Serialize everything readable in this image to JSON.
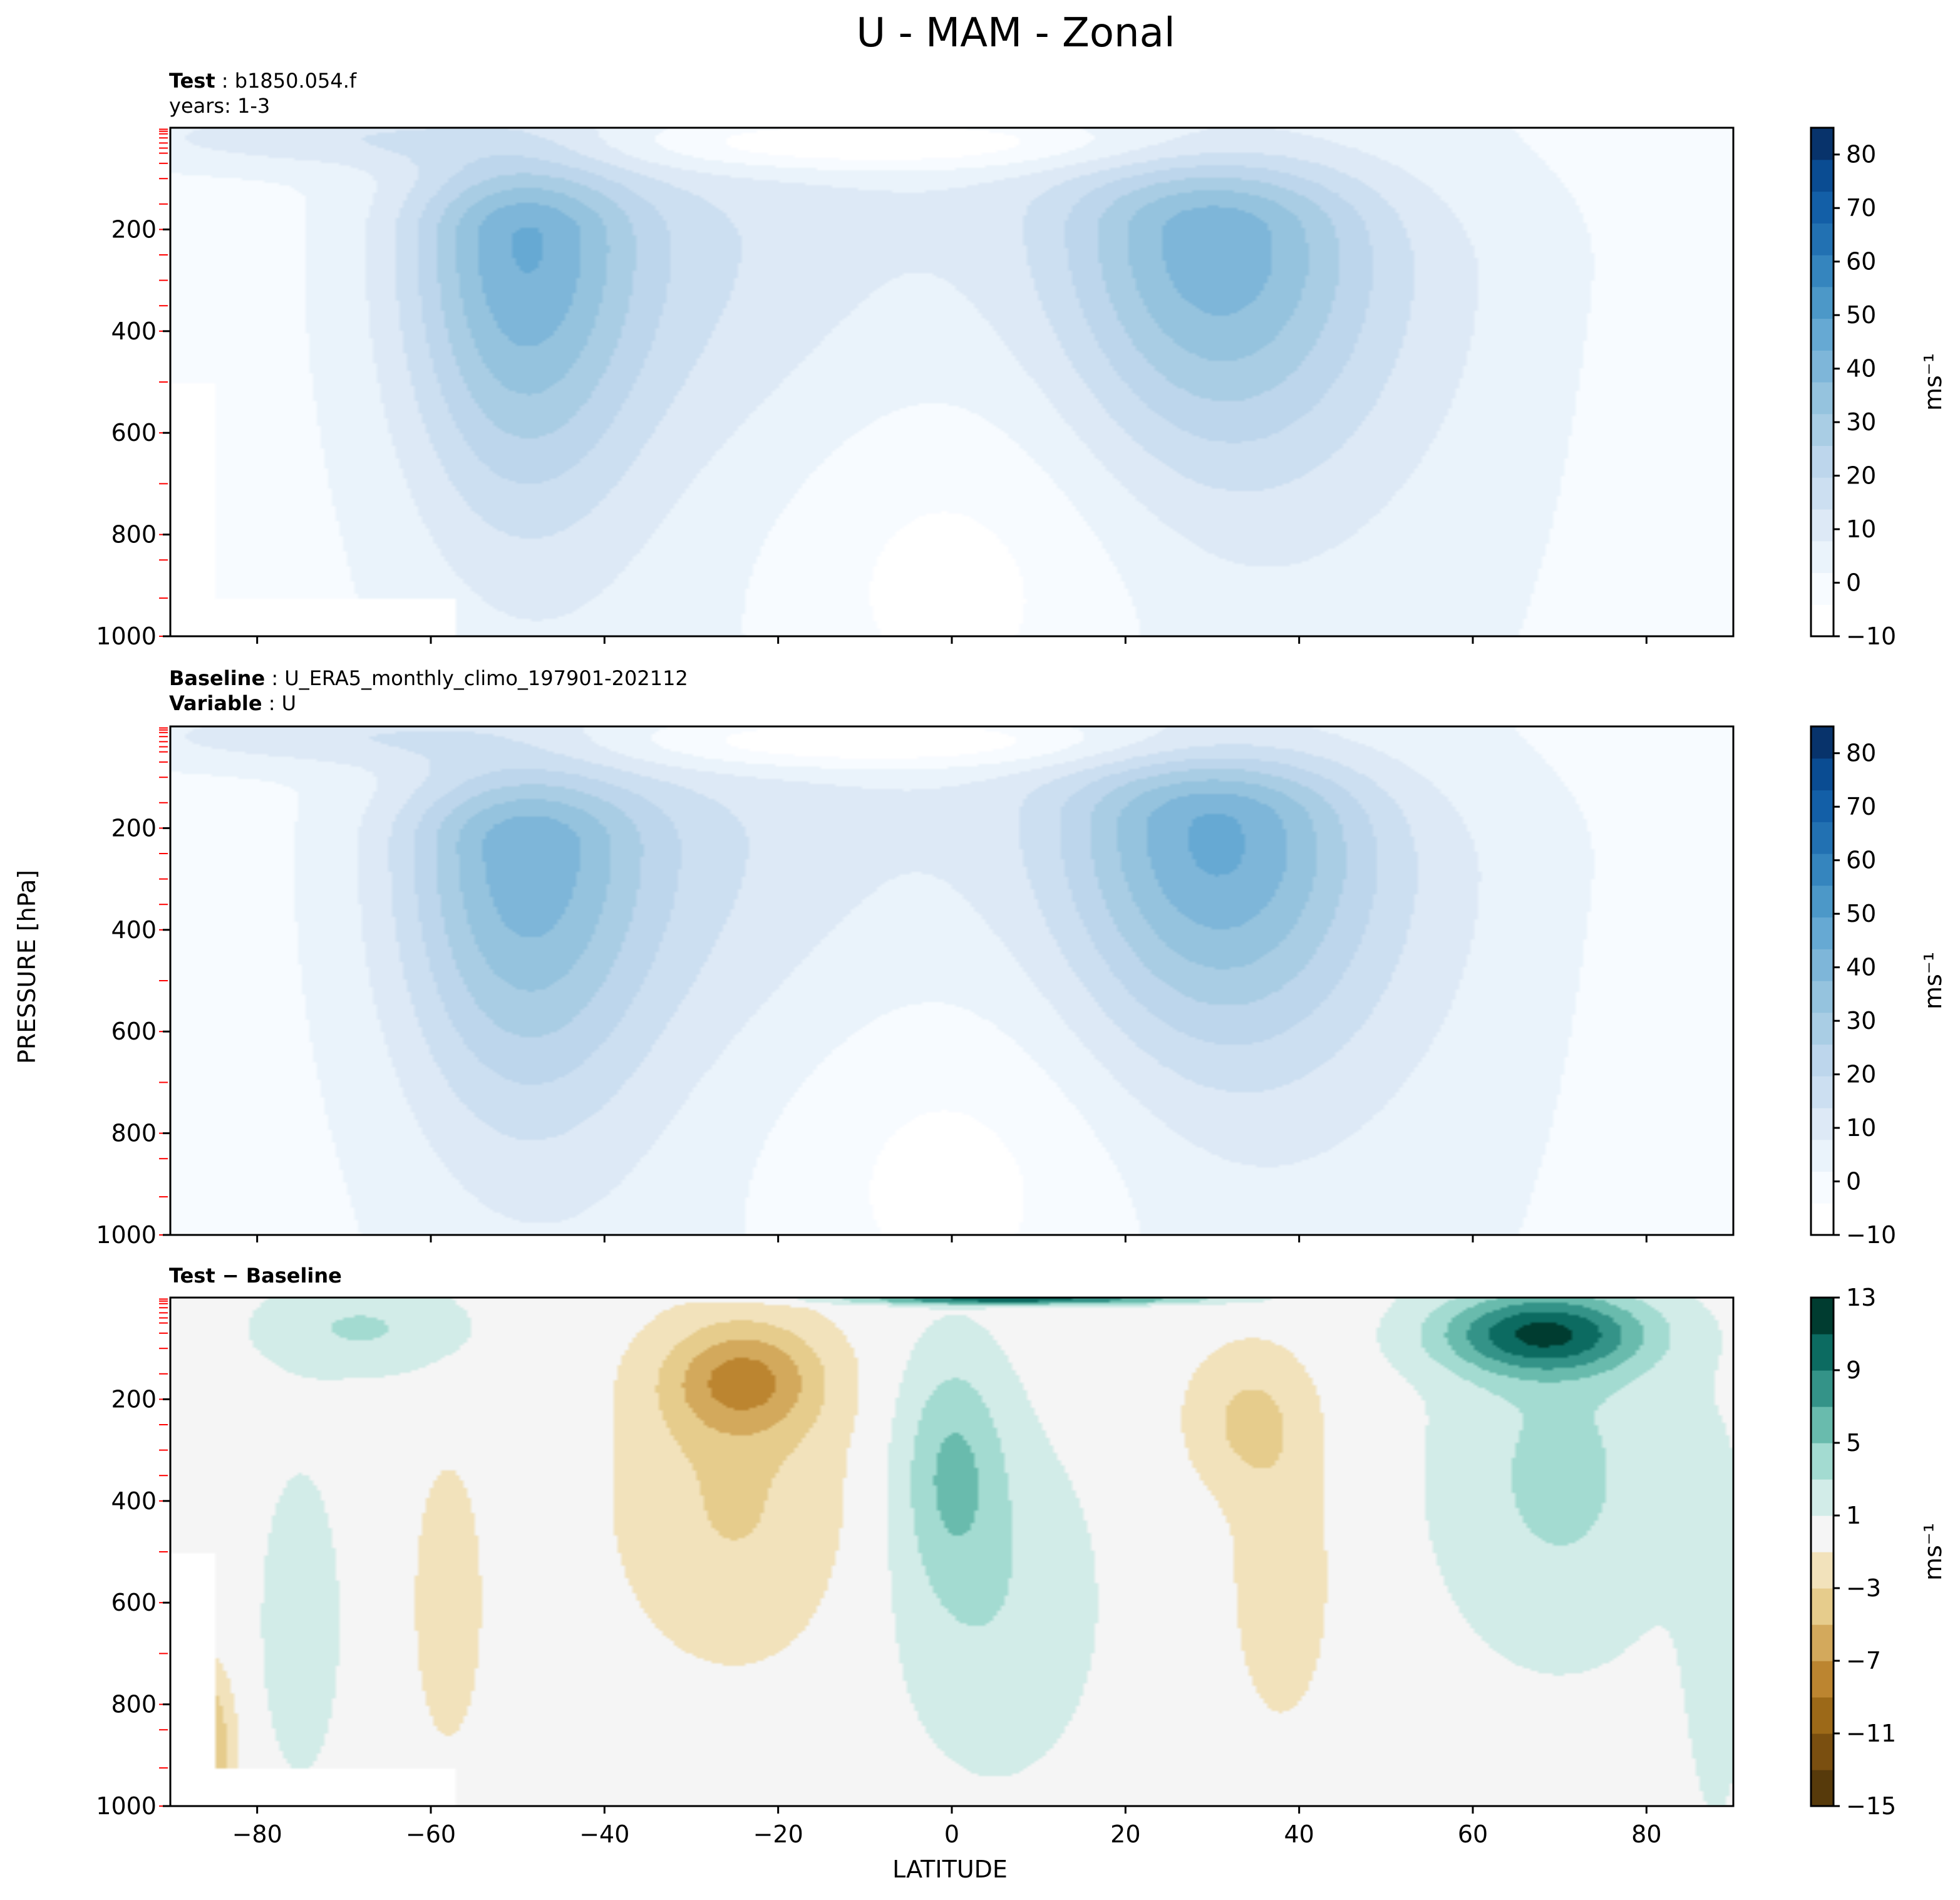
{
  "chart_data": {
    "type": "contourf",
    "title": "U - MAM - Zonal",
    "xlabel": "LATITUDE",
    "ylabel": "PRESSURE [hPa]",
    "xlim": [
      -90,
      90
    ],
    "ylim": [
      1000,
      0
    ],
    "xticks": [
      "−80",
      "−60",
      "−40",
      "−20",
      "0",
      "20",
      "40",
      "60",
      "80"
    ],
    "xtick_values": [
      -80,
      -60,
      -40,
      -20,
      0,
      20,
      40,
      60,
      80
    ],
    "yticks": [
      "200",
      "400",
      "600",
      "800",
      "1000"
    ],
    "ytick_values": [
      200,
      400,
      600,
      800,
      1000
    ],
    "model_levels_hpa": [
      3,
      7,
      12,
      20,
      30,
      40,
      50,
      70,
      100,
      150,
      200,
      250,
      300,
      350,
      400,
      500,
      600,
      700,
      800,
      850,
      925,
      1000
    ],
    "panels": [
      {
        "id": "test",
        "label_bold": "Test",
        "label_text": "b1850.054.f",
        "label2_bold": "",
        "label2_text": "years: 1-3",
        "colorbar": {
          "ticks": [
            "80",
            "70",
            "60",
            "50",
            "40",
            "30",
            "20",
            "10",
            "0",
            "−10"
          ],
          "tick_values": [
            80,
            70,
            60,
            50,
            40,
            30,
            20,
            10,
            0,
            -10
          ],
          "vmin": -10,
          "vmax": 85,
          "units": "ms⁻¹",
          "palette": [
            "#ffffff",
            "#f7fbff",
            "#eaf3fb",
            "#dde9f6",
            "#ccdff1",
            "#bdd6ec",
            "#a9cde4",
            "#95c3de",
            "#7eb6d9",
            "#66a9d3",
            "#4c98c8",
            "#3585be",
            "#2271b2",
            "#135fa7",
            "#0a4c92",
            "#08336b"
          ]
        },
        "field_features": [
          {
            "shape": "jet",
            "lat": -50,
            "p": 210,
            "peak": 35,
            "note": "Southern Hemisphere subtropical jet core"
          },
          {
            "shape": "jet",
            "lat": 30,
            "p": 200,
            "peak": 32,
            "note": "Northern Hemisphere subtropical jet core"
          },
          {
            "shape": "easterly",
            "lat": -12,
            "p": 40,
            "peak": -10,
            "note": "upper tropical easterlies"
          }
        ]
      },
      {
        "id": "baseline",
        "label_bold": "Baseline",
        "label_text": "U_ERA5_monthly_climo_197901-202112",
        "label2_bold": "Variable",
        "label2_text": "U",
        "colorbar": {
          "ticks": [
            "80",
            "70",
            "60",
            "50",
            "40",
            "30",
            "20",
            "10",
            "0",
            "−10"
          ],
          "tick_values": [
            80,
            70,
            60,
            50,
            40,
            30,
            20,
            10,
            0,
            -10
          ],
          "vmin": -10,
          "vmax": 85,
          "units": "ms⁻¹",
          "palette": [
            "#ffffff",
            "#f7fbff",
            "#eaf3fb",
            "#dde9f6",
            "#ccdff1",
            "#bdd6ec",
            "#a9cde4",
            "#95c3de",
            "#7eb6d9",
            "#66a9d3",
            "#4c98c8",
            "#3585be",
            "#2271b2",
            "#135fa7",
            "#0a4c92",
            "#08336b"
          ]
        },
        "field_features": [
          {
            "shape": "jet",
            "lat": -50,
            "p": 230,
            "peak": 33,
            "note": "Southern Hemisphere subtropical jet core"
          },
          {
            "shape": "jet",
            "lat": 30,
            "p": 190,
            "peak": 35,
            "note": "Northern Hemisphere subtropical jet core"
          },
          {
            "shape": "easterly",
            "lat": -12,
            "p": 40,
            "peak": -10,
            "note": "upper tropical easterlies"
          }
        ]
      },
      {
        "id": "diff",
        "label_bold": "Test − Baseline",
        "label_text": "",
        "label2_bold": "",
        "label2_text": "",
        "colorbar": {
          "ticks": [
            "13",
            "9",
            "5",
            "1",
            "−3",
            "−7",
            "−11",
            "−15"
          ],
          "tick_values": [
            13,
            9,
            5,
            1,
            -3,
            -7,
            -11,
            -15
          ],
          "vmin": -15,
          "vmax": 13,
          "units": "ms⁻¹",
          "palette": [
            "#573a0b",
            "#7a4f10",
            "#9c6918",
            "#bc8530",
            "#d3a95c",
            "#e6cc8c",
            "#f2e2bb",
            "#f5f5f5",
            "#d2ece8",
            "#a3dbd1",
            "#69bbad",
            "#349388",
            "#0c6b61",
            "#003c30"
          ]
        },
        "field_features": [
          {
            "shape": "blob",
            "lat": -24,
            "p": 160,
            "peak": -6,
            "note": "negative anomaly"
          },
          {
            "shape": "blob",
            "lat": 0,
            "p": 330,
            "peak": 4,
            "note": "positive anomaly"
          },
          {
            "shape": "blob",
            "lat": 68,
            "p": 70,
            "peak": 9,
            "note": "positive anomaly"
          },
          {
            "shape": "blob",
            "lat": 34,
            "p": 240,
            "peak": -3,
            "note": "negative anomaly"
          },
          {
            "shape": "blob",
            "lat": -68,
            "p": 60,
            "peak": 3,
            "note": "positive anomaly"
          }
        ]
      }
    ]
  }
}
